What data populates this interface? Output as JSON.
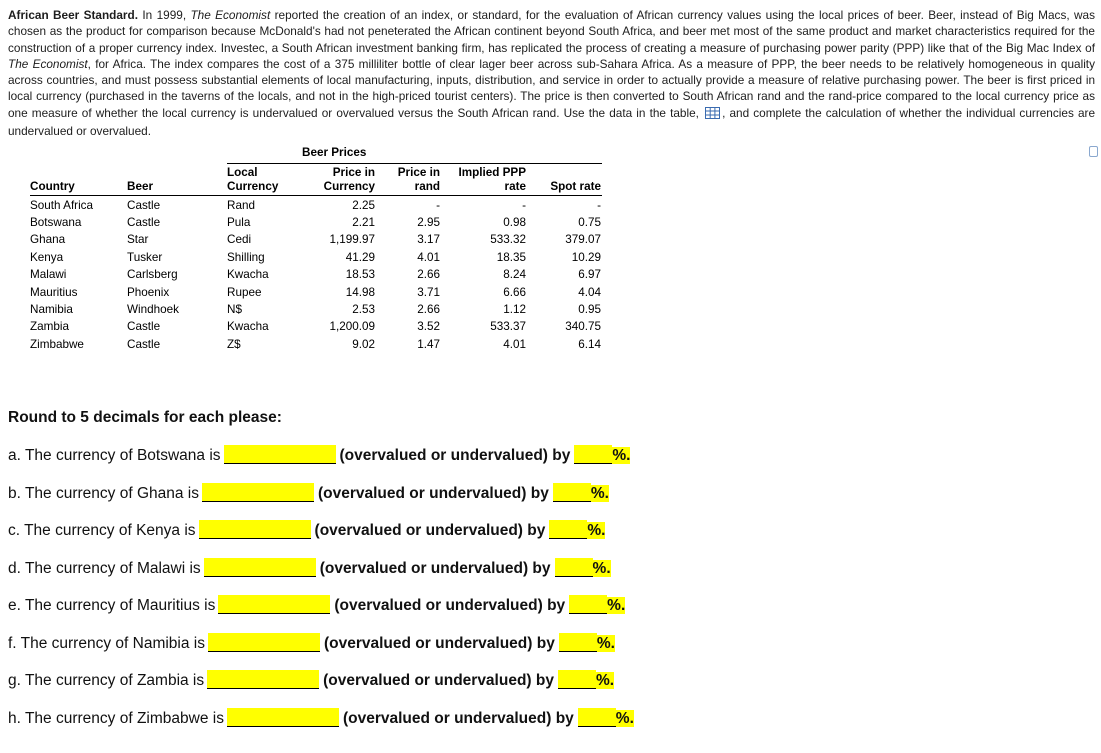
{
  "page": {
    "background": "#ffffff",
    "highlight_color": "#ffff00",
    "table_icon_color": "#3a6bb0"
  },
  "intro": {
    "segments": [
      {
        "style": "bold",
        "text": "African Beer Standard."
      },
      {
        "style": "normal",
        "text": " In 1999, "
      },
      {
        "style": "italic",
        "text": "The Economist"
      },
      {
        "style": "normal",
        "text": " reported the creation of an index, or standard, for the evaluation of African currency values using the local prices of beer. Beer, instead of Big Macs, was chosen as the product for comparison because McDonald's had not peneterated the African continent beyond South Africa, and beer met most of the same product and market characteristics required for the construction of a proper currency index. Investec, a South African investment banking firm, has replicated the process of creating a measure of purchasing power parity (PPP) like that of the Big Mac Index of "
      },
      {
        "style": "italic",
        "text": "The Economist"
      },
      {
        "style": "normal",
        "text": ", for Africa. The index compares the cost of a 375 milliliter bottle of clear lager beer across sub-Sahara Africa. As a measure of PPP, the beer needs to be relatively homogeneous in quality across countries, and must possess substantial elements of local manufacturing, inputs, distribution, and service in order to actually provide a measure of relative purchasing power. The beer is first priced in local currency (purchased in the taverns of the locals, and not in the high-priced tourist centers). The price is then converted to South African rand and the rand-price compared to the local currency price as one measure of whether the local currency is undervalued or overvalued versus the South African rand. Use the data in the table, "
      },
      {
        "style": "normal",
        "text": ", and complete the calculation of whether the individual currencies are undervalued or overvalued."
      }
    ]
  },
  "icons": {
    "data_table_icon": "blue grid spreadsheet glyph",
    "popout_icon": "small rounded square outline"
  },
  "table": {
    "title": "Beer Prices",
    "headers": [
      {
        "key": "country",
        "align": "l",
        "lines": [
          "Country"
        ]
      },
      {
        "key": "beer",
        "align": "l",
        "lines": [
          "Beer"
        ]
      },
      {
        "key": "local-currency",
        "align": "l",
        "lines": [
          "Local",
          "Currency"
        ]
      },
      {
        "key": "price-in-currency",
        "align": "r",
        "lines": [
          "Price in",
          "Currency"
        ]
      },
      {
        "key": "price-in-rand",
        "align": "r",
        "lines": [
          "Price in",
          "rand"
        ]
      },
      {
        "key": "implied-ppp-rate",
        "align": "r",
        "lines": [
          "Implied PPP",
          "rate"
        ]
      },
      {
        "key": "spot-rate",
        "align": "r",
        "lines": [
          "Spot rate"
        ]
      }
    ],
    "rows": [
      {
        "cells": [
          "South Africa",
          "Castle",
          "Rand",
          "2.25",
          "-",
          "-",
          "-"
        ]
      },
      {
        "cells": [
          "Botswana",
          "Castle",
          "Pula",
          "2.21",
          "2.95",
          "0.98",
          "0.75"
        ]
      },
      {
        "cells": [
          "Ghana",
          "Star",
          "Cedi",
          "1,199.97",
          "3.17",
          "533.32",
          "379.07"
        ]
      },
      {
        "cells": [
          "Kenya",
          "Tusker",
          "Shilling",
          "41.29",
          "4.01",
          "18.35",
          "10.29"
        ]
      },
      {
        "cells": [
          "Malawi",
          "Carlsberg",
          "Kwacha",
          "18.53",
          "2.66",
          "8.24",
          "6.97"
        ]
      },
      {
        "cells": [
          "Mauritius",
          "Phoenix",
          "Rupee",
          "14.98",
          "3.71",
          "6.66",
          "4.04"
        ]
      },
      {
        "cells": [
          "Namibia",
          "Windhoek",
          "N$",
          "2.53",
          "2.66",
          "1.12",
          "0.95"
        ]
      },
      {
        "cells": [
          "Zambia",
          "Castle",
          "Kwacha",
          "1,200.09",
          "3.52",
          "533.37",
          "340.75"
        ]
      },
      {
        "cells": [
          "Zimbabwe",
          "Castle",
          "Z$",
          "9.02",
          "1.47",
          "4.01",
          "6.14"
        ]
      }
    ]
  },
  "questions": {
    "heading": "Round to 5 decimals for each please:",
    "items": [
      {
        "label": "a.",
        "prefix": "The currency of Botswana is",
        "middle": "(overvalued or undervalued) by",
        "suffix": "%.",
        "valuation_answer": "",
        "percent_answer": ""
      },
      {
        "label": "b.",
        "prefix": "The currency of Ghana is",
        "middle": "(overvalued or undervalued) by",
        "suffix": "%.",
        "valuation_answer": "",
        "percent_answer": ""
      },
      {
        "label": "c.",
        "prefix": "The currency of Kenya is",
        "middle": "(overvalued or undervalued) by",
        "suffix": "%.",
        "valuation_answer": "",
        "percent_answer": ""
      },
      {
        "label": "d.",
        "prefix": "The currency of Malawi is",
        "middle": "(overvalued or undervalued) by",
        "suffix": "%.",
        "valuation_answer": "",
        "percent_answer": ""
      },
      {
        "label": "e.",
        "prefix": "The currency of Mauritius is",
        "middle": "(overvalued or undervalued) by",
        "suffix": "%.",
        "valuation_answer": "",
        "percent_answer": ""
      },
      {
        "label": "f.",
        "prefix": "The currency of Namibia is",
        "middle": "(overvalued or undervalued) by",
        "suffix": "%.",
        "valuation_answer": "",
        "percent_answer": ""
      },
      {
        "label": "g.",
        "prefix": "The currency of Zambia is",
        "middle": "(overvalued or undervalued) by",
        "suffix": "%.",
        "valuation_answer": "",
        "percent_answer": ""
      },
      {
        "label": "h.",
        "prefix": "The currency of Zimbabwe is",
        "middle": "(overvalued or undervalued) by",
        "suffix": "%.",
        "valuation_answer": "",
        "percent_answer": ""
      }
    ]
  }
}
